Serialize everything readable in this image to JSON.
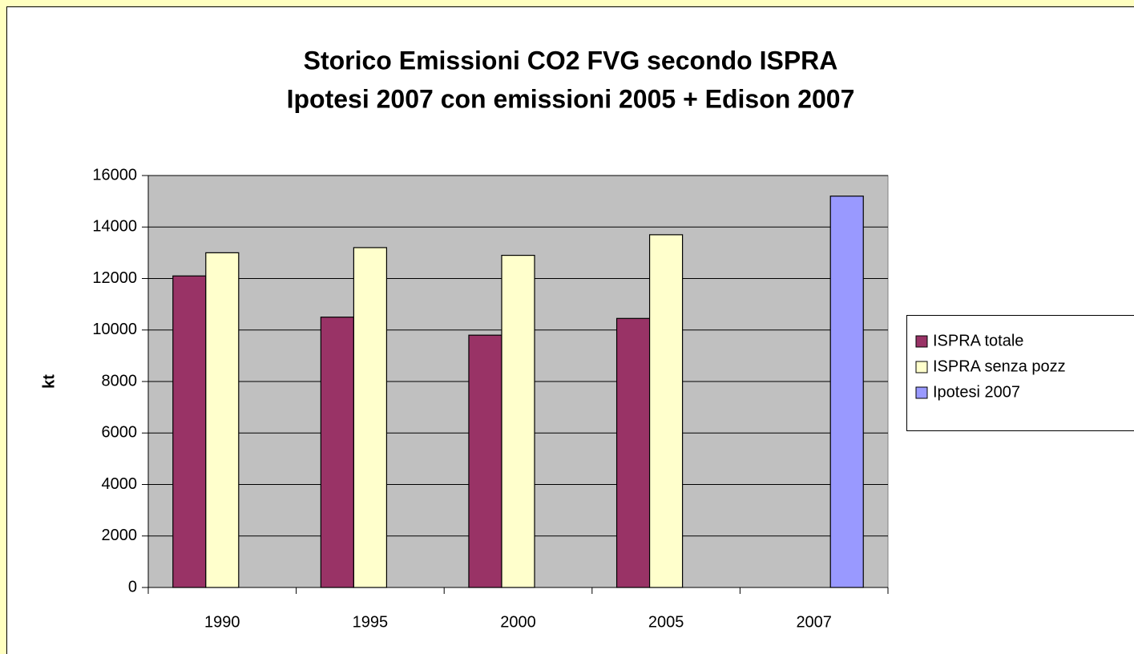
{
  "chart_data": {
    "type": "bar",
    "title": [
      "Storico Emissioni CO2 FVG   secondo ISPRA",
      "Ipotesi 2007 con emissioni 2005 + Edison 2007"
    ],
    "y_label": "kt",
    "categories": [
      "1990",
      "1995",
      "2000",
      "2005",
      "2007"
    ],
    "series": [
      {
        "name": "ISPRA totale",
        "color": "#993366",
        "values": [
          12100,
          10500,
          9800,
          10450,
          null
        ]
      },
      {
        "name": "ISPRA senza pozz",
        "color": "#ffffcc",
        "values": [
          13000,
          13200,
          12900,
          13700,
          null
        ]
      },
      {
        "name": "Ipotesi 2007",
        "color": "#9999ff",
        "values": [
          null,
          null,
          null,
          null,
          15200
        ]
      }
    ],
    "ylim": [
      0,
      16000
    ],
    "yticks": [
      0,
      2000,
      4000,
      6000,
      8000,
      10000,
      12000,
      14000,
      16000
    ],
    "grid": true,
    "plot_background": "#c0c0c0",
    "legend": "right"
  }
}
